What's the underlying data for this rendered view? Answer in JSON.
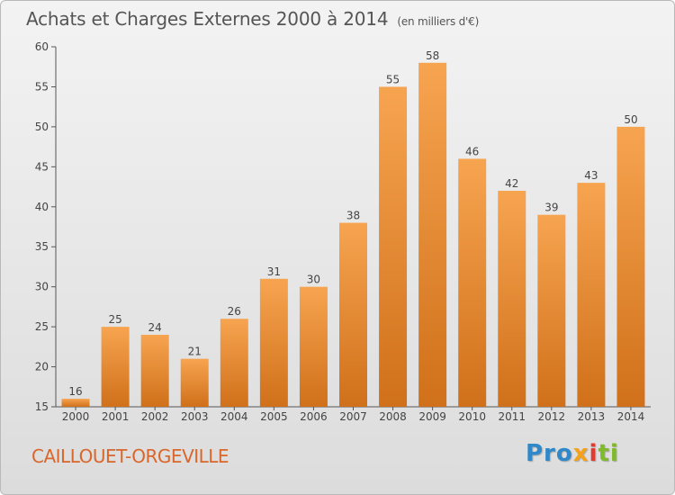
{
  "header": {
    "title": "Achats et Charges Externes 2000 à 2014",
    "unit": "(en milliers d'€)"
  },
  "footer": {
    "commune": "CAILLOUET-ORGEVILLE",
    "logo_parts": [
      "Pro",
      "x",
      "i",
      "ti"
    ]
  },
  "colors": {
    "bar_top": "#f7a450",
    "bar_bottom": "#d0701a",
    "commune_text": "#d9662a",
    "axis": "#555555"
  },
  "chart_data": {
    "type": "bar",
    "title": "Achats et Charges Externes 2000 à 2014",
    "subtitle": "(en milliers d'€)",
    "categories": [
      "2000",
      "2001",
      "2002",
      "2003",
      "2004",
      "2005",
      "2006",
      "2007",
      "2008",
      "2009",
      "2010",
      "2011",
      "2012",
      "2013",
      "2014"
    ],
    "values": [
      16,
      25,
      24,
      21,
      26,
      31,
      30,
      38,
      55,
      58,
      46,
      42,
      39,
      43,
      50
    ],
    "ylim": [
      15,
      60
    ],
    "yticks": [
      15,
      20,
      25,
      30,
      35,
      40,
      45,
      50,
      55,
      60
    ],
    "xlabel": "",
    "ylabel": "",
    "grid": false,
    "legend": "none",
    "data_labels": true
  }
}
